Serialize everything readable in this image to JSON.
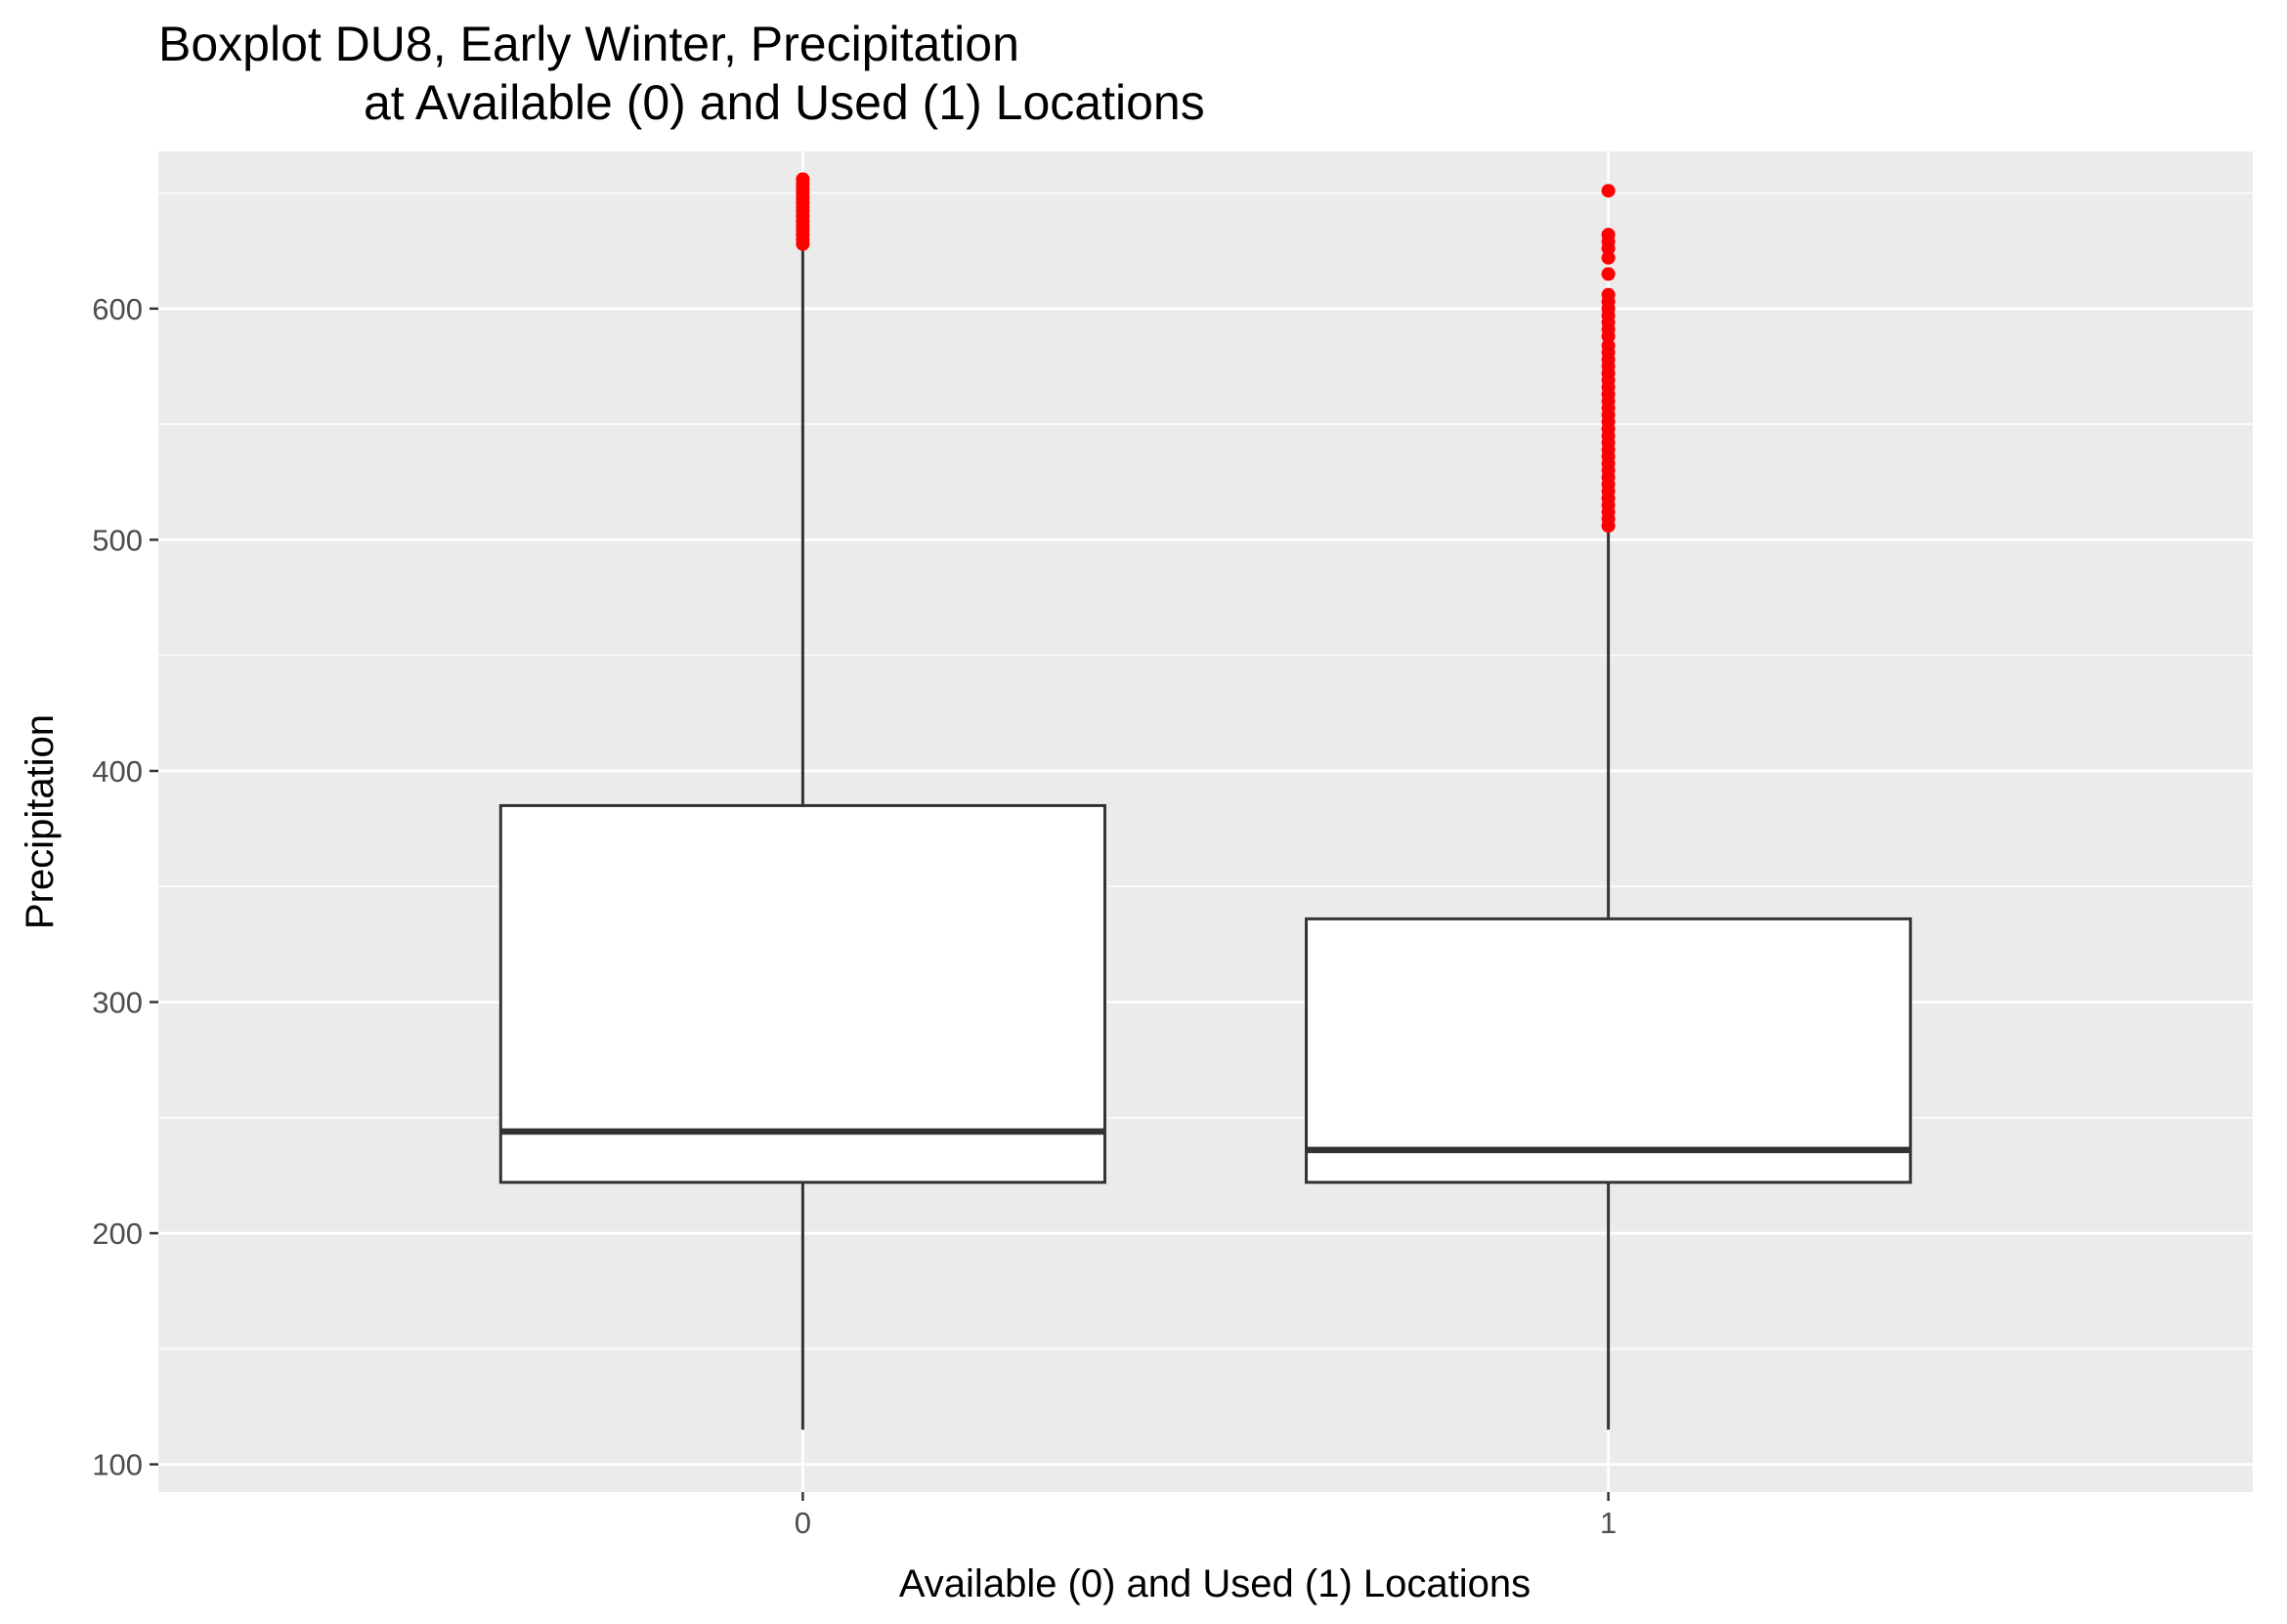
{
  "chart_data": {
    "type": "boxplot",
    "title": [
      "Boxplot DU8, Early Winter, Precipitation",
      "at Available (0) and Used (1) Locations"
    ],
    "xlabel": "Available (0) and Used (1) Locations",
    "ylabel": "Precipitation",
    "categories": [
      "0",
      "1"
    ],
    "ylim": [
      88,
      668
    ],
    "yticks": [
      100,
      200,
      300,
      400,
      500,
      600
    ],
    "grid": true,
    "colors": {
      "panel": "#ebebeb",
      "grid": "#ffffff",
      "box_fill": "#ffffff",
      "box_line": "#333333",
      "outlier": "#ff0000",
      "tick_text": "#4d4d4d"
    },
    "boxes": [
      {
        "category": "0",
        "whisker_low": 115,
        "q1": 222,
        "median": 244,
        "q3": 385,
        "whisker_high": 627,
        "outliers": [
          628,
          630,
          632,
          634,
          636,
          638,
          640,
          642,
          644,
          646,
          648,
          650,
          652,
          654,
          656
        ]
      },
      {
        "category": "1",
        "whisker_low": 115,
        "q1": 222,
        "median": 236,
        "q3": 336,
        "whisker_high": 505,
        "outliers": [
          506,
          509,
          512,
          515,
          518,
          521,
          524,
          527,
          530,
          533,
          536,
          539,
          542,
          545,
          548,
          551,
          554,
          557,
          560,
          563,
          566,
          569,
          572,
          575,
          578,
          581,
          584,
          588,
          591,
          594,
          597,
          600,
          603,
          606,
          615,
          622,
          626,
          629,
          632,
          651
        ]
      }
    ]
  }
}
